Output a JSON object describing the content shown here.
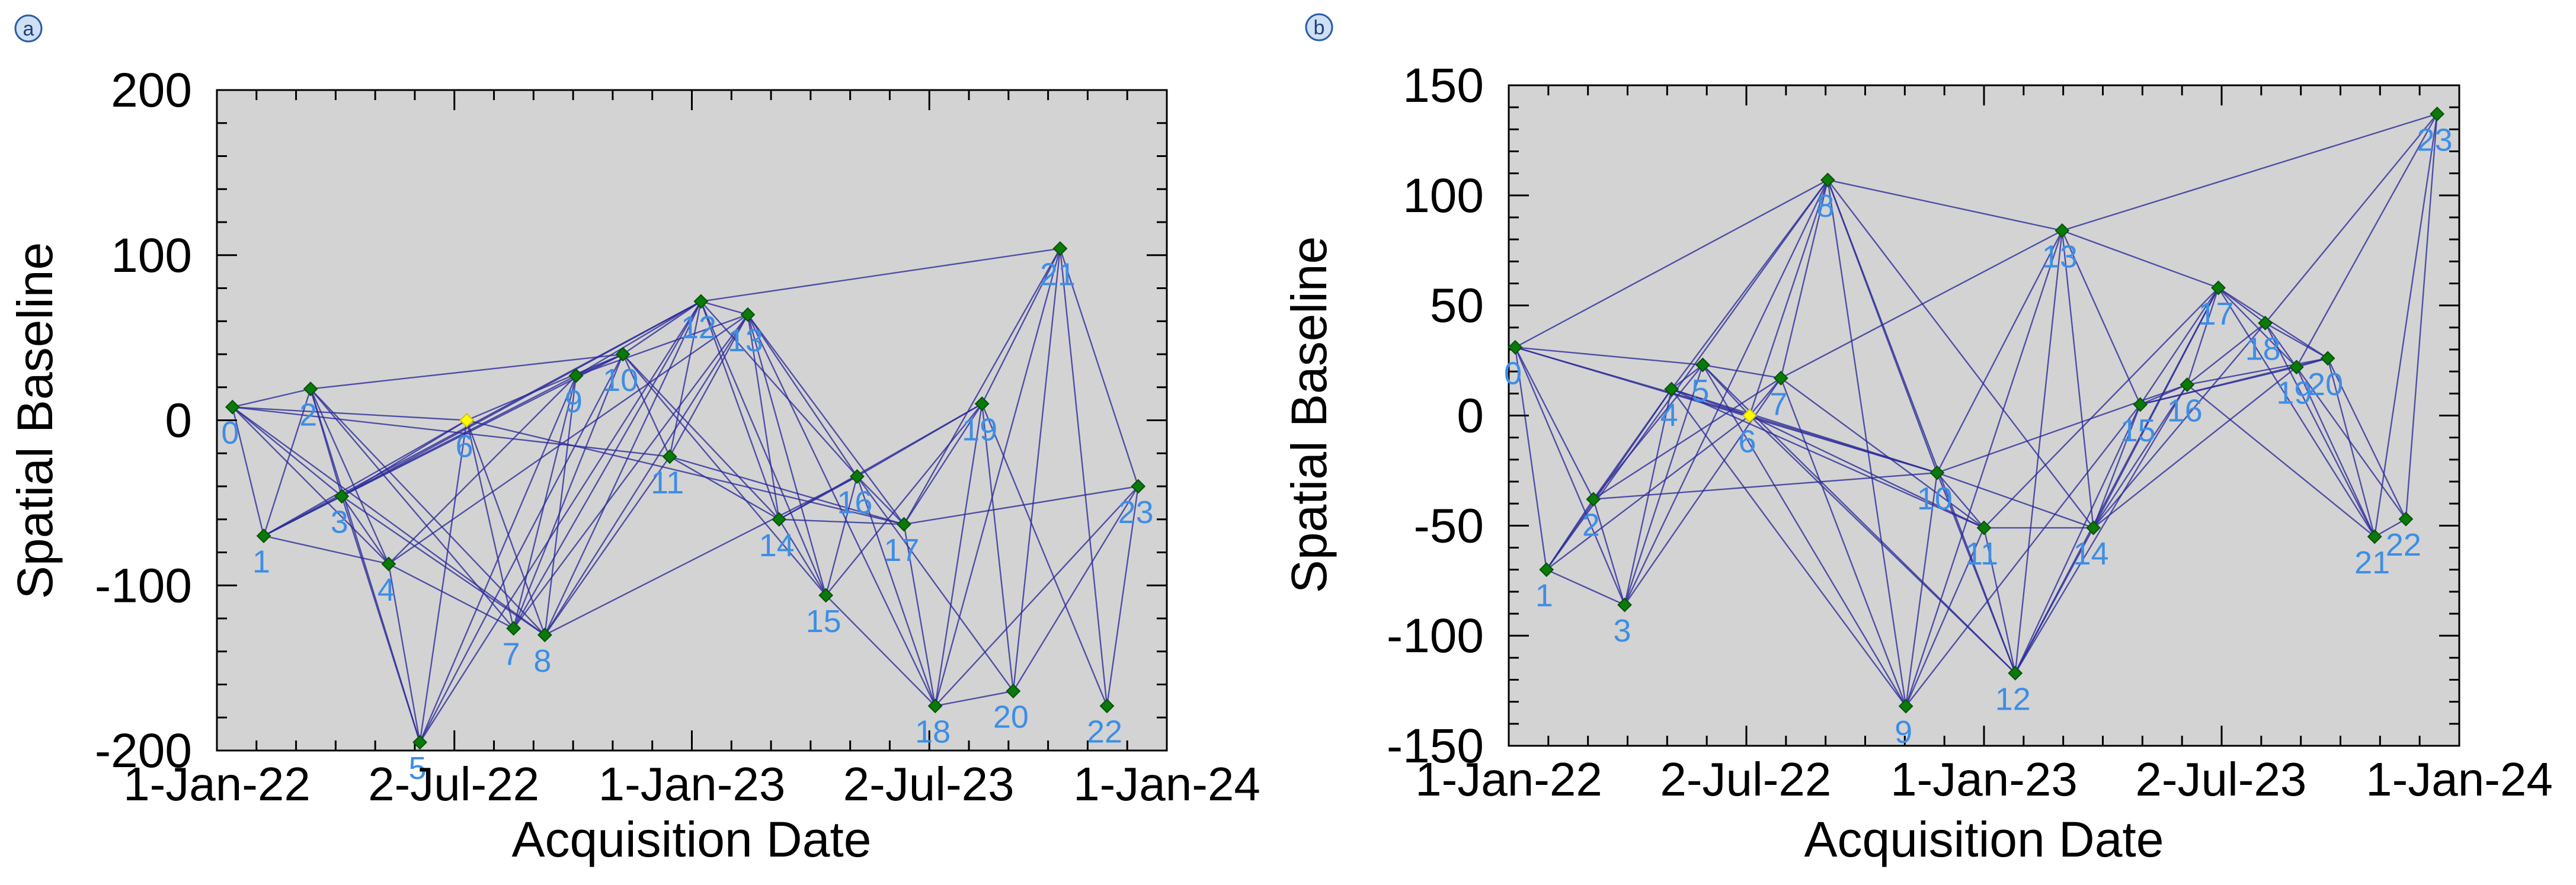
{
  "chart_data": [
    {
      "type": "scatter",
      "panel_label": "a",
      "title": "",
      "xlabel": "Acquisition Date",
      "ylabel": "Spatial Baseline",
      "ylim": [
        -200,
        200
      ],
      "yticks": [
        -200,
        -100,
        0,
        100,
        200
      ],
      "ytick_labels": [
        "-200",
        "-100",
        "0",
        "100",
        "200"
      ],
      "xlim_days": [
        0,
        730
      ],
      "xticks": [
        0,
        182,
        365,
        547,
        730
      ],
      "xtick_labels": [
        "1-Jan-22",
        "2-Jul-22",
        "1-Jan-23",
        "2-Jul-23",
        "1-Jan-24"
      ],
      "reference_index": 6,
      "node_color": "#0a7a0a",
      "reference_color": "#ffff00",
      "edge_color": "#2a2a9a",
      "label_color": "#3d8ee6",
      "background": "#d3d3d3",
      "points": [
        {
          "id": "0",
          "day": 12,
          "baseline": 8
        },
        {
          "id": "1",
          "day": 36,
          "baseline": -70
        },
        {
          "id": "2",
          "day": 72,
          "baseline": 19
        },
        {
          "id": "3",
          "day": 96,
          "baseline": -46
        },
        {
          "id": "4",
          "day": 132,
          "baseline": -87
        },
        {
          "id": "5",
          "day": 156,
          "baseline": -195
        },
        {
          "id": "6",
          "day": 192,
          "baseline": 0
        },
        {
          "id": "7",
          "day": 228,
          "baseline": -126
        },
        {
          "id": "8",
          "day": 252,
          "baseline": -130
        },
        {
          "id": "9",
          "day": 276,
          "baseline": 27
        },
        {
          "id": "10",
          "day": 312,
          "baseline": 40
        },
        {
          "id": "11",
          "day": 348,
          "baseline": -22
        },
        {
          "id": "12",
          "day": 372,
          "baseline": 72
        },
        {
          "id": "13",
          "day": 408,
          "baseline": 64
        },
        {
          "id": "14",
          "day": 432,
          "baseline": -60
        },
        {
          "id": "15",
          "day": 468,
          "baseline": -106
        },
        {
          "id": "16",
          "day": 492,
          "baseline": -34
        },
        {
          "id": "17",
          "day": 528,
          "baseline": -63
        },
        {
          "id": "18",
          "day": 552,
          "baseline": -173
        },
        {
          "id": "19",
          "day": 588,
          "baseline": 10
        },
        {
          "id": "20",
          "day": 612,
          "baseline": -164
        },
        {
          "id": "21",
          "day": 648,
          "baseline": 104
        },
        {
          "id": "22",
          "day": 684,
          "baseline": -173
        },
        {
          "id": "23",
          "day": 708,
          "baseline": -40
        }
      ],
      "edges": [
        [
          0,
          1
        ],
        [
          0,
          2
        ],
        [
          0,
          3
        ],
        [
          0,
          4
        ],
        [
          0,
          6
        ],
        [
          0,
          8
        ],
        [
          0,
          11
        ],
        [
          1,
          2
        ],
        [
          1,
          3
        ],
        [
          1,
          4
        ],
        [
          1,
          6
        ],
        [
          1,
          9
        ],
        [
          1,
          12
        ],
        [
          2,
          3
        ],
        [
          2,
          4
        ],
        [
          2,
          5
        ],
        [
          2,
          7
        ],
        [
          2,
          8
        ],
        [
          2,
          10
        ],
        [
          3,
          4
        ],
        [
          3,
          5
        ],
        [
          3,
          6
        ],
        [
          3,
          8
        ],
        [
          3,
          10
        ],
        [
          3,
          12
        ],
        [
          4,
          5
        ],
        [
          4,
          7
        ],
        [
          4,
          9
        ],
        [
          4,
          13
        ],
        [
          5,
          6
        ],
        [
          5,
          9
        ],
        [
          5,
          10
        ],
        [
          5,
          12
        ],
        [
          6,
          7
        ],
        [
          6,
          8
        ],
        [
          6,
          10
        ],
        [
          6,
          17
        ],
        [
          7,
          9
        ],
        [
          7,
          10
        ],
        [
          7,
          12
        ],
        [
          7,
          13
        ],
        [
          8,
          9
        ],
        [
          8,
          11
        ],
        [
          8,
          12
        ],
        [
          8,
          13
        ],
        [
          8,
          16
        ],
        [
          9,
          10
        ],
        [
          9,
          12
        ],
        [
          9,
          13
        ],
        [
          10,
          11
        ],
        [
          10,
          12
        ],
        [
          10,
          14
        ],
        [
          10,
          15
        ],
        [
          11,
          12
        ],
        [
          11,
          13
        ],
        [
          11,
          14
        ],
        [
          11,
          17
        ],
        [
          12,
          13
        ],
        [
          12,
          14
        ],
        [
          12,
          15
        ],
        [
          12,
          16
        ],
        [
          12,
          21
        ],
        [
          13,
          14
        ],
        [
          13,
          15
        ],
        [
          13,
          16
        ],
        [
          13,
          17
        ],
        [
          13,
          18
        ],
        [
          14,
          15
        ],
        [
          14,
          16
        ],
        [
          14,
          17
        ],
        [
          14,
          19
        ],
        [
          15,
          16
        ],
        [
          15,
          18
        ],
        [
          15,
          19
        ],
        [
          16,
          17
        ],
        [
          16,
          18
        ],
        [
          16,
          19
        ],
        [
          16,
          20
        ],
        [
          17,
          18
        ],
        [
          17,
          19
        ],
        [
          17,
          21
        ],
        [
          17,
          23
        ],
        [
          18,
          19
        ],
        [
          18,
          20
        ],
        [
          18,
          21
        ],
        [
          18,
          23
        ],
        [
          19,
          20
        ],
        [
          19,
          21
        ],
        [
          19,
          22
        ],
        [
          20,
          21
        ],
        [
          20,
          23
        ],
        [
          21,
          22
        ],
        [
          21,
          23
        ],
        [
          22,
          23
        ]
      ]
    },
    {
      "type": "scatter",
      "panel_label": "b",
      "title": "",
      "xlabel": "Acquisition Date",
      "ylabel": "Spatial Baseline",
      "ylim": [
        -150,
        150
      ],
      "yticks": [
        -150,
        -100,
        -50,
        0,
        50,
        100,
        150
      ],
      "ytick_labels": [
        "-150",
        "-100",
        "-50",
        "0",
        "50",
        "100",
        "150"
      ],
      "xlim_days": [
        0,
        730
      ],
      "xticks": [
        0,
        182,
        365,
        547,
        730
      ],
      "xtick_labels": [
        "1-Jan-22",
        "2-Jul-22",
        "1-Jan-23",
        "2-Jul-23",
        "1-Jan-24"
      ],
      "reference_index": 6,
      "node_color": "#0a7a0a",
      "reference_color": "#ffff00",
      "edge_color": "#2a2a9a",
      "label_color": "#3d8ee6",
      "background": "#d3d3d3",
      "points": [
        {
          "id": "0",
          "day": 5,
          "baseline": 31
        },
        {
          "id": "1",
          "day": 29,
          "baseline": -70
        },
        {
          "id": "2",
          "day": 65,
          "baseline": -38
        },
        {
          "id": "3",
          "day": 89,
          "baseline": -86
        },
        {
          "id": "4",
          "day": 125,
          "baseline": 12
        },
        {
          "id": "5",
          "day": 149,
          "baseline": 23
        },
        {
          "id": "6",
          "day": 185,
          "baseline": 0
        },
        {
          "id": "7",
          "day": 209,
          "baseline": 17
        },
        {
          "id": "8",
          "day": 245,
          "baseline": 107
        },
        {
          "id": "9",
          "day": 305,
          "baseline": -132
        },
        {
          "id": "10",
          "day": 329,
          "baseline": -26
        },
        {
          "id": "11",
          "day": 365,
          "baseline": -51
        },
        {
          "id": "12",
          "day": 389,
          "baseline": -117
        },
        {
          "id": "13",
          "day": 425,
          "baseline": 84
        },
        {
          "id": "14",
          "day": 449,
          "baseline": -51
        },
        {
          "id": "15",
          "day": 485,
          "baseline": 5
        },
        {
          "id": "16",
          "day": 521,
          "baseline": 14
        },
        {
          "id": "17",
          "day": 545,
          "baseline": 58
        },
        {
          "id": "18",
          "day": 581,
          "baseline": 42
        },
        {
          "id": "19",
          "day": 605,
          "baseline": 22
        },
        {
          "id": "20",
          "day": 629,
          "baseline": 26
        },
        {
          "id": "21",
          "day": 665,
          "baseline": -55
        },
        {
          "id": "22",
          "day": 689,
          "baseline": -47
        },
        {
          "id": "23",
          "day": 713,
          "baseline": 137
        }
      ],
      "edges": [
        [
          0,
          1
        ],
        [
          0,
          2
        ],
        [
          0,
          3
        ],
        [
          0,
          5
        ],
        [
          0,
          6
        ],
        [
          0,
          8
        ],
        [
          0,
          10
        ],
        [
          1,
          2
        ],
        [
          1,
          3
        ],
        [
          1,
          4
        ],
        [
          1,
          6
        ],
        [
          1,
          8
        ],
        [
          2,
          3
        ],
        [
          2,
          4
        ],
        [
          2,
          5
        ],
        [
          2,
          7
        ],
        [
          2,
          10
        ],
        [
          3,
          4
        ],
        [
          3,
          5
        ],
        [
          3,
          7
        ],
        [
          3,
          8
        ],
        [
          4,
          5
        ],
        [
          4,
          6
        ],
        [
          4,
          8
        ],
        [
          4,
          9
        ],
        [
          4,
          10
        ],
        [
          4,
          11
        ],
        [
          5,
          6
        ],
        [
          5,
          7
        ],
        [
          5,
          9
        ],
        [
          5,
          12
        ],
        [
          6,
          7
        ],
        [
          6,
          8
        ],
        [
          6,
          10
        ],
        [
          6,
          11
        ],
        [
          6,
          12
        ],
        [
          7,
          8
        ],
        [
          7,
          9
        ],
        [
          7,
          11
        ],
        [
          7,
          13
        ],
        [
          8,
          9
        ],
        [
          8,
          10
        ],
        [
          8,
          12
        ],
        [
          8,
          13
        ],
        [
          8,
          14
        ],
        [
          9,
          10
        ],
        [
          9,
          11
        ],
        [
          9,
          13
        ],
        [
          9,
          15
        ],
        [
          10,
          11
        ],
        [
          10,
          12
        ],
        [
          10,
          13
        ],
        [
          10,
          14
        ],
        [
          10,
          16
        ],
        [
          11,
          12
        ],
        [
          11,
          14
        ],
        [
          11,
          17
        ],
        [
          12,
          13
        ],
        [
          12,
          14
        ],
        [
          12,
          15
        ],
        [
          12,
          16
        ],
        [
          12,
          17
        ],
        [
          13,
          14
        ],
        [
          13,
          15
        ],
        [
          13,
          17
        ],
        [
          13,
          23
        ],
        [
          14,
          15
        ],
        [
          14,
          16
        ],
        [
          14,
          17
        ],
        [
          14,
          18
        ],
        [
          14,
          19
        ],
        [
          15,
          16
        ],
        [
          15,
          17
        ],
        [
          15,
          19
        ],
        [
          15,
          20
        ],
        [
          16,
          17
        ],
        [
          16,
          18
        ],
        [
          16,
          20
        ],
        [
          16,
          21
        ],
        [
          17,
          18
        ],
        [
          17,
          19
        ],
        [
          17,
          20
        ],
        [
          17,
          21
        ],
        [
          18,
          19
        ],
        [
          18,
          20
        ],
        [
          18,
          21
        ],
        [
          18,
          23
        ],
        [
          19,
          20
        ],
        [
          19,
          21
        ],
        [
          19,
          22
        ],
        [
          19,
          23
        ],
        [
          20,
          21
        ],
        [
          20,
          22
        ],
        [
          21,
          22
        ],
        [
          21,
          23
        ],
        [
          22,
          23
        ]
      ]
    }
  ]
}
